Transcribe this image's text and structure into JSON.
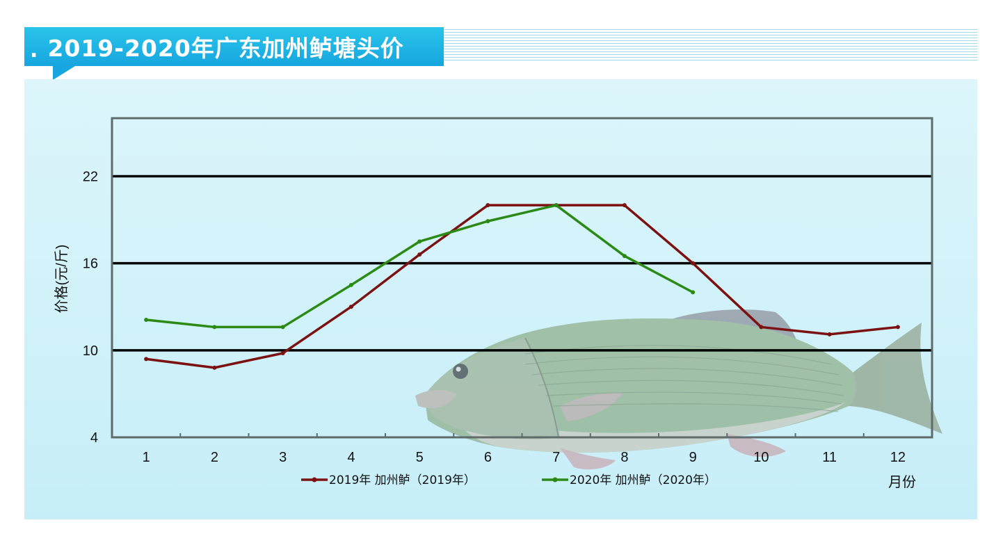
{
  "header": {
    "dot": ".",
    "title": "2019-2020年广东加州鲈塘头价"
  },
  "colors": {
    "banner": "#17a6df",
    "panel": "#d5f3fa",
    "series_2019": "#7b1111",
    "series_2020": "#2a8a14"
  },
  "chart_data": {
    "type": "line",
    "title": "2019-2020年广东加州鲈塘头价",
    "xlabel": "月份",
    "ylabel": "价格(元/斤)",
    "categories": [
      "1",
      "2",
      "3",
      "4",
      "5",
      "6",
      "7",
      "8",
      "9",
      "10",
      "11",
      "12"
    ],
    "ylim": [
      4,
      26
    ],
    "yticks": [
      "4",
      "10",
      "16",
      "22"
    ],
    "grid": "horizontal lines at 10, 16, 22",
    "legend": "bottom-center",
    "series": [
      {
        "name": "2019年 加州鲈（2019年）",
        "color": "#7b1111",
        "values": [
          9.4,
          8.8,
          9.8,
          13.0,
          16.6,
          20.0,
          20.0,
          20.0,
          16.0,
          11.6,
          11.1,
          11.6
        ]
      },
      {
        "name": "2020年 加州鲈（2020年）",
        "color": "#2a8a14",
        "values": [
          12.1,
          11.6,
          11.6,
          14.5,
          17.5,
          18.9,
          20.0,
          16.5,
          14.0,
          null,
          null,
          null
        ]
      }
    ]
  }
}
